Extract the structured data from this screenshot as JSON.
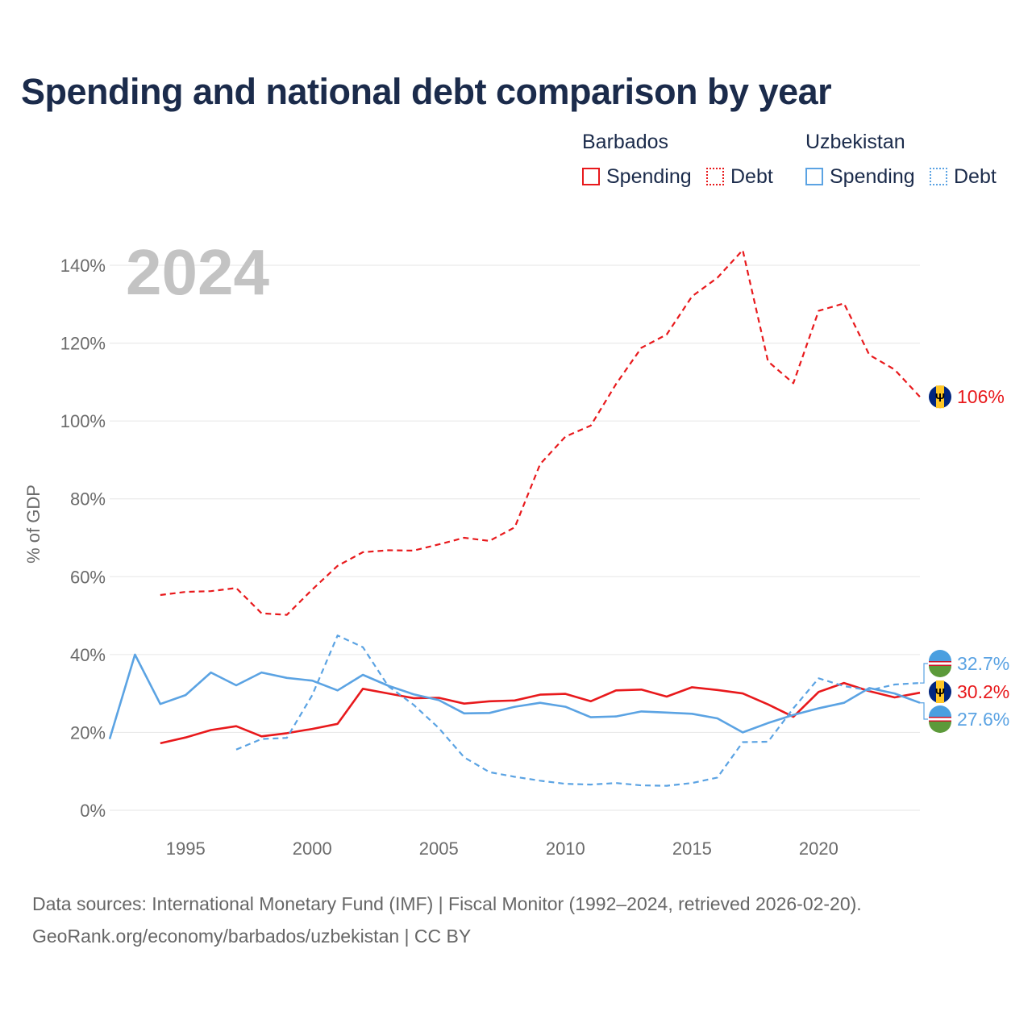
{
  "title": "Spending and national debt comparison by year",
  "legend": {
    "groups": [
      {
        "name": "Barbados",
        "items": [
          {
            "label": "Spending"
          },
          {
            "label": "Debt"
          }
        ]
      },
      {
        "name": "Uzbekistan",
        "items": [
          {
            "label": "Spending"
          },
          {
            "label": "Debt"
          }
        ]
      }
    ]
  },
  "year_label": "2024",
  "colors": {
    "barbados": "#e8191c",
    "uzbekistan": "#5ba3e3",
    "title": "#1b2b4b",
    "grid": "#e6e6e6"
  },
  "footer": {
    "line1": "Data sources: International Monetary Fund (IMF) | Fiscal Monitor (1992–2024, retrieved 2026-02-20).",
    "line2": "GeoRank.org/economy/barbados/uzbekistan | CC BY"
  },
  "chart_data": {
    "type": "line",
    "title": "Spending and national debt comparison by year",
    "ylabel": "% of GDP",
    "xlabel": "",
    "xlim": [
      1992,
      2024
    ],
    "ylim": [
      0,
      145
    ],
    "yticks": [
      0,
      20,
      40,
      60,
      80,
      100,
      120,
      140
    ],
    "ytick_labels": [
      "0%",
      "20%",
      "40%",
      "60%",
      "80%",
      "100%",
      "120%",
      "140%"
    ],
    "xticks": [
      1995,
      2000,
      2005,
      2010,
      2015,
      2020
    ],
    "xtick_labels": [
      "1995",
      "2000",
      "2005",
      "2010",
      "2015",
      "2020"
    ],
    "series": [
      {
        "name": "Barbados Debt",
        "country": "barbados",
        "dash": true,
        "x": [
          1994,
          1995,
          1996,
          1997,
          1998,
          1999,
          2000,
          2001,
          2002,
          2003,
          2004,
          2005,
          2006,
          2007,
          2008,
          2009,
          2010,
          2011,
          2012,
          2013,
          2014,
          2015,
          2016,
          2017,
          2018,
          2019,
          2020,
          2021,
          2022,
          2023,
          2024
        ],
        "values": [
          55.3,
          56.1,
          56.3,
          57.1,
          50.6,
          50.2,
          56.7,
          62.8,
          66.3,
          66.8,
          66.7,
          68.3,
          70.0,
          69.2,
          72.7,
          88.9,
          96.0,
          98.8,
          109.5,
          118.8,
          122.2,
          132.0,
          136.8,
          143.9,
          115.3,
          109.7,
          128.3,
          130.2,
          117.0,
          113.2,
          106.2
        ],
        "end_label": "106%"
      },
      {
        "name": "Barbados Spending",
        "country": "barbados",
        "dash": false,
        "x": [
          1994,
          1995,
          1996,
          1997,
          1998,
          1999,
          2000,
          2001,
          2002,
          2003,
          2004,
          2005,
          2006,
          2007,
          2008,
          2009,
          2010,
          2011,
          2012,
          2013,
          2014,
          2015,
          2016,
          2017,
          2018,
          2019,
          2020,
          2021,
          2022,
          2023,
          2024
        ],
        "values": [
          17.2,
          18.7,
          20.6,
          21.6,
          19.0,
          19.8,
          20.9,
          22.2,
          31.2,
          30.0,
          28.8,
          28.9,
          27.4,
          28.0,
          28.2,
          29.7,
          29.9,
          28.0,
          30.8,
          31.0,
          29.2,
          31.6,
          30.9,
          30.0,
          27.2,
          24.0,
          30.4,
          32.7,
          30.6,
          29.0,
          30.2
        ],
        "end_label": "30.2%"
      },
      {
        "name": "Uzbekistan Spending",
        "country": "uzbekistan",
        "dash": false,
        "x": [
          1992,
          1993,
          1994,
          1995,
          1996,
          1997,
          1998,
          1999,
          2000,
          2001,
          2002,
          2003,
          2004,
          2005,
          2006,
          2007,
          2008,
          2009,
          2010,
          2011,
          2012,
          2013,
          2014,
          2015,
          2016,
          2017,
          2018,
          2019,
          2020,
          2021,
          2022,
          2023,
          2024
        ],
        "values": [
          18.3,
          40.0,
          27.3,
          29.6,
          35.4,
          32.1,
          35.4,
          34.0,
          33.3,
          30.8,
          34.8,
          32.0,
          29.8,
          28.3,
          24.9,
          25.0,
          26.6,
          27.6,
          26.6,
          23.9,
          24.1,
          25.4,
          25.1,
          24.8,
          23.6,
          20.0,
          22.4,
          24.5,
          26.2,
          27.6,
          31.4,
          30.0,
          27.6
        ],
        "end_label": "27.6%"
      },
      {
        "name": "Uzbekistan Debt",
        "country": "uzbekistan",
        "dash": true,
        "x": [
          1997,
          1998,
          1999,
          2000,
          2001,
          2002,
          2003,
          2004,
          2005,
          2006,
          2007,
          2008,
          2009,
          2010,
          2011,
          2012,
          2013,
          2014,
          2015,
          2016,
          2017,
          2018,
          2019,
          2020,
          2021,
          2022,
          2023,
          2024
        ],
        "values": [
          15.6,
          18.3,
          18.6,
          29.6,
          44.9,
          41.9,
          31.9,
          27.1,
          21.1,
          13.6,
          9.8,
          8.6,
          7.6,
          6.8,
          6.6,
          7.0,
          6.4,
          6.3,
          7.0,
          8.4,
          17.5,
          17.6,
          26.2,
          33.9,
          31.9,
          30.8,
          32.3,
          32.7
        ],
        "end_label": "32.7%"
      }
    ]
  }
}
